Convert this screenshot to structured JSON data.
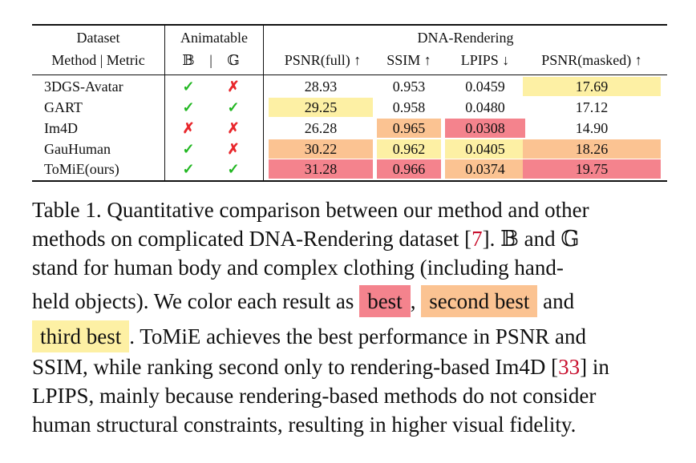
{
  "table": {
    "header": {
      "dataset": "Dataset",
      "method_metric": "Method | Metric",
      "animatable": "Animatable",
      "body_symbol": "𝔹",
      "sep": "|",
      "cloth_symbol": "𝔾",
      "group": "DNA-Rendering",
      "psnr_full": "PSNR(full) ↑",
      "ssim": "SSIM ↑",
      "lpips": "LPIPS ↓",
      "psnr_masked": "PSNR(masked) ↑"
    },
    "rows": [
      {
        "method": "3DGS-Avatar",
        "b": "✓",
        "g": "✗",
        "b_ok": true,
        "g_ok": false,
        "psnr_full": "28.93",
        "ssim": "0.953",
        "lpips": "0.0459",
        "psnr_masked": "17.69",
        "rank": {
          "psnr_full": 0,
          "ssim": 0,
          "lpips": 0,
          "psnr_masked": 3
        }
      },
      {
        "method": "GART",
        "b": "✓",
        "g": "✓",
        "b_ok": true,
        "g_ok": true,
        "psnr_full": "29.25",
        "ssim": "0.958",
        "lpips": "0.0480",
        "psnr_masked": "17.12",
        "rank": {
          "psnr_full": 3,
          "ssim": 0,
          "lpips": 0,
          "psnr_masked": 0
        }
      },
      {
        "method": "Im4D",
        "b": "✗",
        "g": "✗",
        "b_ok": false,
        "g_ok": false,
        "psnr_full": "26.28",
        "ssim": "0.965",
        "lpips": "0.0308",
        "psnr_masked": "14.90",
        "rank": {
          "psnr_full": 0,
          "ssim": 2,
          "lpips": 1,
          "psnr_masked": 0
        }
      },
      {
        "method": "GauHuman",
        "b": "✓",
        "g": "✗",
        "b_ok": true,
        "g_ok": false,
        "psnr_full": "30.22",
        "ssim": "0.962",
        "lpips": "0.0405",
        "psnr_masked": "18.26",
        "rank": {
          "psnr_full": 2,
          "ssim": 3,
          "lpips": 3,
          "psnr_masked": 2
        }
      },
      {
        "method": "ToMiE(ours)",
        "b": "✓",
        "g": "✓",
        "b_ok": true,
        "g_ok": true,
        "psnr_full": "31.28",
        "ssim": "0.966",
        "lpips": "0.0374",
        "psnr_masked": "19.75",
        "rank": {
          "psnr_full": 1,
          "ssim": 1,
          "lpips": 2,
          "psnr_masked": 1
        }
      }
    ]
  },
  "colors": {
    "best": "#f4838d",
    "second": "#fbc392",
    "third": "#fdf0a4",
    "check": "#22b722",
    "cross": "#e8262b",
    "ref": "#c8102e"
  },
  "caption": {
    "l1": "Table 1.  Quantitative comparison between our method and other",
    "l2a": "methods on complicated DNA-Rendering dataset [",
    "l2ref": "7",
    "l2b": "].  𝔹 and 𝔾",
    "l3": "stand for human body and complex clothing (including hand-",
    "l4a": "held objects).  We color each result as",
    "best": "best",
    "comma": ",",
    "second_best": "second best",
    "and": "and",
    "third_best": "third best",
    "l5b": ".  ToMiE achieves the best performance in PSNR and",
    "l6a": "SSIM, while ranking second only to rendering-based Im4D [",
    "l6ref": "33",
    "l6b": "] in",
    "l7": "LPIPS, mainly because rendering-based methods do not consider",
    "l8": "human structural constraints, resulting in higher visual fidelity."
  }
}
